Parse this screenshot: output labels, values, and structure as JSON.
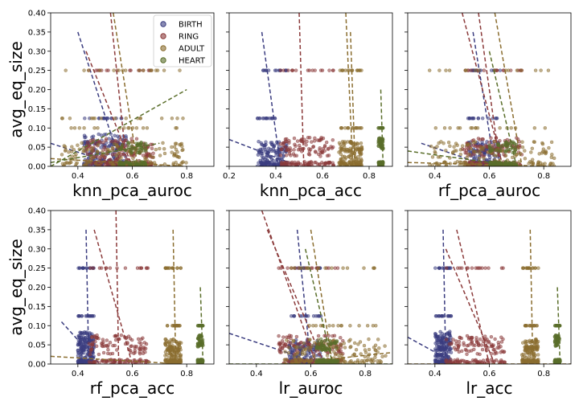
{
  "chart_data": {
    "type": "scatter",
    "ylabel": "avg_eq_size",
    "ylim": [
      0,
      0.4
    ],
    "yticks": [
      "0.00",
      "0.05",
      "0.10",
      "0.15",
      "0.20",
      "0.25",
      "0.30",
      "0.35",
      "0.40"
    ],
    "legend": {
      "placement": "top-right of first panel",
      "entries": [
        {
          "name": "BIRTH",
          "color": "#3b3d80"
        },
        {
          "name": "RING",
          "color": "#8b3a3a"
        },
        {
          "name": "ADULT",
          "color": "#8a6d2f"
        },
        {
          "name": "HEART",
          "color": "#5a6e2a"
        }
      ]
    },
    "panels": [
      {
        "xlabel": "knn_pca_auroc",
        "xlim": [
          0.3,
          0.9
        ],
        "xticks": [
          0.4,
          0.6,
          0.8
        ],
        "series": [
          {
            "name": "BIRTH",
            "x_range": [
              0.42,
              0.58
            ],
            "y_levels": [
              0.0,
              0.02,
              0.05,
              0.07,
              0.125
            ],
            "fits": [
              [
                [
                  0.4,
                  0.35
                ],
                [
                  0.56,
                  0.0
                ]
              ],
              [
                [
                  0.3,
                  0.06
                ],
                [
                  0.56,
                  0.0
                ]
              ]
            ]
          },
          {
            "name": "RING",
            "x_range": [
              0.43,
              0.68
            ],
            "y_levels": [
              0.0,
              0.02,
              0.04,
              0.06,
              0.25
            ],
            "fits": [
              [
                [
                  0.52,
                  0.4
                ],
                [
                  0.58,
                  0.0
                ]
              ],
              [
                [
                  0.43,
                  0.3
                ],
                [
                  0.6,
                  0.0
                ]
              ]
            ]
          },
          {
            "name": "ADULT",
            "x_range": [
              0.34,
              0.8
            ],
            "y_levels": [
              0.0,
              0.03,
              0.05,
              0.1,
              0.125,
              0.25
            ],
            "fits": [
              [
                [
                  0.53,
                  0.4
                ],
                [
                  0.62,
                  0.0
                ]
              ],
              [
                [
                  0.3,
                  0.02
                ],
                [
                  0.8,
                  0.0
                ]
              ]
            ]
          },
          {
            "name": "HEART",
            "x_range": [
              0.55,
              0.65
            ],
            "y_levels": [
              0.0,
              0.05
            ],
            "fits": [
              [
                [
                  0.3,
                  0.0
                ],
                [
                  0.8,
                  0.2
                ]
              ],
              [
                [
                  0.3,
                  0.01
                ],
                [
                  0.7,
                  0.06
                ]
              ]
            ]
          }
        ]
      },
      {
        "xlabel": "knn_pca_acc",
        "xlim": [
          0.2,
          0.9
        ],
        "xticks": [
          0.2,
          0.4,
          0.6,
          0.8
        ],
        "series": [
          {
            "name": "BIRTH",
            "x_range": [
              0.32,
              0.45
            ],
            "y_levels": [
              0.0,
              0.03,
              0.05,
              0.125,
              0.25
            ],
            "fits": [
              [
                [
                  0.34,
                  0.35
                ],
                [
                  0.42,
                  0.0
                ]
              ],
              [
                [
                  0.2,
                  0.07
                ],
                [
                  0.5,
                  0.0
                ]
              ]
            ]
          },
          {
            "name": "RING",
            "x_range": [
              0.42,
              0.65
            ],
            "y_levels": [
              0.0,
              0.04,
              0.06,
              0.25
            ],
            "fits": [
              [
                [
                  0.5,
                  0.4
                ],
                [
                  0.52,
                  0.0
                ]
              ],
              [
                [
                  0.45,
                  0.0
                ],
                [
                  0.65,
                  0.0
                ]
              ]
            ]
          },
          {
            "name": "ADULT",
            "x_range": [
              0.67,
              0.77
            ],
            "y_levels": [
              0.0,
              0.03,
              0.05,
              0.1,
              0.25
            ],
            "fits": [
              [
                [
                  0.7,
                  0.4
                ],
                [
                  0.73,
                  0.0
                ]
              ],
              [
                [
                  0.72,
                  0.35
                ],
                [
                  0.74,
                  0.0
                ]
              ]
            ]
          },
          {
            "name": "HEART",
            "x_range": [
              0.84,
              0.86
            ],
            "y_levels": [
              0.0,
              0.06,
              0.1
            ],
            "fits": [
              [
                [
                  0.85,
                  0.2
                ],
                [
                  0.86,
                  0.0
                ]
              ]
            ]
          }
        ]
      },
      {
        "xlabel": "rf_pca_auroc",
        "xlim": [
          0.3,
          0.9
        ],
        "xticks": [
          0.4,
          0.6,
          0.8
        ],
        "series": [
          {
            "name": "BIRTH",
            "x_range": [
              0.52,
              0.64
            ],
            "y_levels": [
              0.0,
              0.03,
              0.05,
              0.125,
              0.25
            ],
            "fits": [
              [
                [
                  0.54,
                  0.35
                ],
                [
                  0.62,
                  0.0
                ]
              ],
              [
                [
                  0.35,
                  0.06
                ],
                [
                  0.6,
                  0.0
                ]
              ]
            ]
          },
          {
            "name": "RING",
            "x_range": [
              0.5,
              0.72
            ],
            "y_levels": [
              0.0,
              0.04,
              0.06,
              0.25
            ],
            "fits": [
              [
                [
                  0.5,
                  0.4
                ],
                [
                  0.65,
                  0.0
                ]
              ],
              [
                [
                  0.56,
                  0.4
                ],
                [
                  0.64,
                  0.0
                ]
              ]
            ]
          },
          {
            "name": "ADULT",
            "x_range": [
              0.38,
              0.84
            ],
            "y_levels": [
              0.0,
              0.03,
              0.05,
              0.1,
              0.25
            ],
            "fits": [
              [
                [
                  0.62,
                  0.4
                ],
                [
                  0.72,
                  0.0
                ]
              ],
              [
                [
                  0.3,
                  0.01
                ],
                [
                  0.84,
                  0.0
                ]
              ]
            ]
          },
          {
            "name": "HEART",
            "x_range": [
              0.6,
              0.7
            ],
            "y_levels": [
              0.0,
              0.05
            ],
            "fits": [
              [
                [
                  0.3,
                  0.04
                ],
                [
                  0.7,
                  0.0
                ]
              ],
              [
                [
                  0.6,
                  0.3
                ],
                [
                  0.7,
                  0.0
                ]
              ]
            ]
          }
        ]
      },
      {
        "xlabel": "rf_pca_acc",
        "xlim": [
          0.3,
          0.9
        ],
        "xticks": [
          0.4,
          0.6,
          0.8
        ],
        "series": [
          {
            "name": "BIRTH",
            "x_range": [
              0.4,
              0.46
            ],
            "y_levels": [
              0.0,
              0.03,
              0.05,
              0.07,
              0.125,
              0.25
            ],
            "fits": [
              [
                [
                  0.43,
                  0.35
                ],
                [
                  0.44,
                  0.0
                ]
              ],
              [
                [
                  0.34,
                  0.11
                ],
                [
                  0.48,
                  0.0
                ]
              ]
            ]
          },
          {
            "name": "RING",
            "x_range": [
              0.44,
              0.66
            ],
            "y_levels": [
              0.0,
              0.04,
              0.06,
              0.25
            ],
            "fits": [
              [
                [
                  0.54,
                  0.4
                ],
                [
                  0.55,
                  0.0
                ]
              ],
              [
                [
                  0.46,
                  0.35
                ],
                [
                  0.6,
                  0.0
                ]
              ]
            ]
          },
          {
            "name": "ADULT",
            "x_range": [
              0.72,
              0.78
            ],
            "y_levels": [
              0.0,
              0.03,
              0.05,
              0.1,
              0.25
            ],
            "fits": [
              [
                [
                  0.75,
                  0.35
                ],
                [
                  0.76,
                  0.0
                ]
              ],
              [
                [
                  0.3,
                  0.02
                ],
                [
                  0.78,
                  0.0
                ]
              ]
            ]
          },
          {
            "name": "HEART",
            "x_range": [
              0.84,
              0.86
            ],
            "y_levels": [
              0.0,
              0.06,
              0.1
            ],
            "fits": [
              [
                [
                  0.85,
                  0.2
                ],
                [
                  0.86,
                  0.0
                ]
              ]
            ]
          }
        ]
      },
      {
        "xlabel": "lr_auroc",
        "xlim": [
          0.3,
          0.9
        ],
        "xticks": [
          0.4,
          0.6,
          0.8
        ],
        "series": [
          {
            "name": "BIRTH",
            "x_range": [
              0.52,
              0.64
            ],
            "y_levels": [
              0.0,
              0.03,
              0.05,
              0.125,
              0.25
            ],
            "fits": [
              [
                [
                  0.55,
                  0.35
                ],
                [
                  0.6,
                  0.0
                ]
              ],
              [
                [
                  0.3,
                  0.08
                ],
                [
                  0.64,
                  0.0
                ]
              ]
            ]
          },
          {
            "name": "RING",
            "x_range": [
              0.48,
              0.72
            ],
            "y_levels": [
              0.0,
              0.04,
              0.06,
              0.25
            ],
            "fits": [
              [
                [
                  0.42,
                  0.4
                ],
                [
                  0.62,
                  0.0
                ]
              ],
              [
                [
                  0.44,
                  0.35
                ],
                [
                  0.65,
                  0.0
                ]
              ]
            ]
          },
          {
            "name": "ADULT",
            "x_range": [
              0.5,
              0.88
            ],
            "y_levels": [
              0.0,
              0.03,
              0.05,
              0.1,
              0.25
            ],
            "fits": [
              [
                [
                  0.6,
                  0.35
                ],
                [
                  0.68,
                  0.0
                ]
              ],
              [
                [
                  0.5,
                  0.0
                ],
                [
                  0.9,
                  0.03
                ]
              ]
            ]
          },
          {
            "name": "HEART",
            "x_range": [
              0.62,
              0.7
            ],
            "y_levels": [
              0.0,
              0.05
            ],
            "fits": [
              [
                [
                  0.58,
                  0.3
                ],
                [
                  0.68,
                  0.0
                ]
              ],
              [
                [
                  0.3,
                  0.0
                ],
                [
                  0.9,
                  0.0
                ]
              ]
            ]
          }
        ]
      },
      {
        "xlabel": "lr_acc",
        "xlim": [
          0.3,
          0.9
        ],
        "xticks": [
          0.4,
          0.6,
          0.8
        ],
        "series": [
          {
            "name": "BIRTH",
            "x_range": [
              0.4,
              0.46
            ],
            "y_levels": [
              0.0,
              0.03,
              0.05,
              0.07,
              0.125,
              0.25
            ],
            "fits": [
              [
                [
                  0.43,
                  0.35
                ],
                [
                  0.44,
                  0.0
                ]
              ],
              [
                [
                  0.3,
                  0.07
                ],
                [
                  0.48,
                  0.0
                ]
              ]
            ]
          },
          {
            "name": "RING",
            "x_range": [
              0.44,
              0.66
            ],
            "y_levels": [
              0.0,
              0.04,
              0.06,
              0.25
            ],
            "fits": [
              [
                [
                  0.48,
                  0.35
                ],
                [
                  0.6,
                  0.0
                ]
              ],
              [
                [
                  0.44,
                  0.3
                ],
                [
                  0.62,
                  0.0
                ]
              ]
            ]
          },
          {
            "name": "ADULT",
            "x_range": [
              0.72,
              0.78
            ],
            "y_levels": [
              0.0,
              0.03,
              0.05,
              0.1,
              0.25
            ],
            "fits": [
              [
                [
                  0.75,
                  0.35
                ],
                [
                  0.76,
                  0.0
                ]
              ],
              [
                [
                  0.3,
                  0.0
                ],
                [
                  0.9,
                  0.0
                ]
              ]
            ]
          },
          {
            "name": "HEART",
            "x_range": [
              0.84,
              0.86
            ],
            "y_levels": [
              0.0,
              0.06,
              0.1
            ],
            "fits": [
              [
                [
                  0.85,
                  0.2
                ],
                [
                  0.86,
                  0.0
                ]
              ]
            ]
          }
        ]
      }
    ]
  }
}
